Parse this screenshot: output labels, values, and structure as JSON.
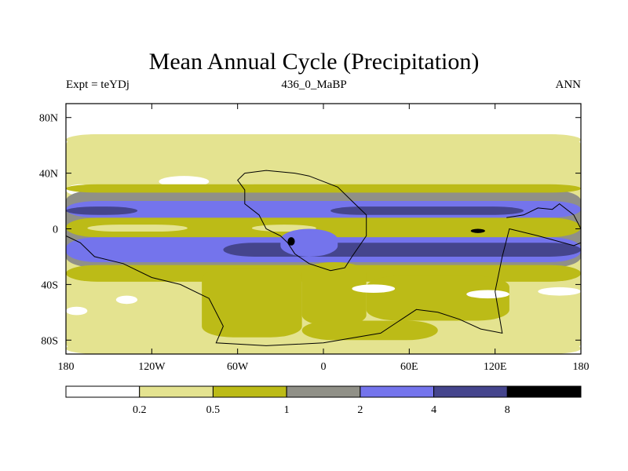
{
  "chart_data": {
    "type": "heatmap",
    "title": "Mean Annual Cycle (Precipitation)",
    "subtitle_left": "Expt = teYDj",
    "subtitle_center": "436_0_MaBP",
    "subtitle_right": "ANN",
    "x_range": [
      -180,
      180
    ],
    "y_range": [
      -90,
      90
    ],
    "x_ticks": [
      {
        "value": -180,
        "label": "180"
      },
      {
        "value": -120,
        "label": "120W"
      },
      {
        "value": -60,
        "label": "60W"
      },
      {
        "value": 0,
        "label": "0"
      },
      {
        "value": 60,
        "label": "60E"
      },
      {
        "value": 120,
        "label": "120E"
      },
      {
        "value": 180,
        "label": "180"
      }
    ],
    "y_ticks": [
      {
        "value": 80,
        "label": "80N"
      },
      {
        "value": 40,
        "label": "40N"
      },
      {
        "value": 0,
        "label": "0"
      },
      {
        "value": -40,
        "label": "40S"
      },
      {
        "value": -80,
        "label": "80S"
      }
    ],
    "colorbar": {
      "levels": [
        0.2,
        0.5,
        1,
        2,
        4,
        8
      ],
      "labels": [
        "0.2",
        "0.5",
        "1",
        "2",
        "4",
        "8"
      ],
      "colors": [
        "#ffffff",
        "#e4e390",
        "#bcbb17",
        "#909087",
        "#7474ec",
        "#45458d",
        "#000000"
      ]
    },
    "regions": [
      {
        "level": 1,
        "lon": [
          -180,
          180
        ],
        "lat": [
          -90,
          68
        ]
      },
      {
        "level": 0,
        "lon": [
          -180,
          180
        ],
        "lat": [
          68,
          90
        ]
      },
      {
        "level": 1,
        "lon": [
          -180,
          180
        ],
        "lat": [
          60,
          68
        ]
      },
      {
        "level": 1,
        "lon": [
          -180,
          180
        ],
        "lat": [
          44,
          54
        ]
      },
      {
        "level": 1,
        "lon": [
          -180,
          -30
        ],
        "lat": [
          28,
          36
        ]
      },
      {
        "level": 1,
        "lon": [
          40,
          140
        ],
        "lat": [
          24,
          36
        ]
      },
      {
        "level": 0,
        "lon": [
          -115,
          -80
        ],
        "lat": [
          30,
          38
        ]
      },
      {
        "level": 0,
        "lon": [
          -70,
          -35
        ],
        "lat": [
          22,
          32
        ]
      },
      {
        "level": 0,
        "lon": [
          -180,
          -160
        ],
        "lat": [
          24,
          32
        ]
      },
      {
        "level": 3,
        "lon": [
          -180,
          180
        ],
        "lat": [
          -28,
          28
        ]
      },
      {
        "level": 2,
        "lon": [
          -180,
          180
        ],
        "lat": [
          -38,
          -26
        ]
      },
      {
        "level": 2,
        "lon": [
          -180,
          180
        ],
        "lat": [
          26,
          32
        ]
      },
      {
        "level": 4,
        "lon": [
          -180,
          180
        ],
        "lat": [
          -24,
          -6
        ]
      },
      {
        "level": 4,
        "lon": [
          -180,
          180
        ],
        "lat": [
          8,
          20
        ]
      },
      {
        "level": 5,
        "lon": [
          -180,
          -130
        ],
        "lat": [
          10,
          16
        ]
      },
      {
        "level": 5,
        "lon": [
          -70,
          180
        ],
        "lat": [
          -20,
          -10
        ]
      },
      {
        "level": 5,
        "lon": [
          5,
          140
        ],
        "lat": [
          10,
          16
        ]
      },
      {
        "level": 2,
        "lon": [
          -180,
          180
        ],
        "lat": [
          -6,
          8
        ]
      },
      {
        "level": 1,
        "lon": [
          -165,
          -95
        ],
        "lat": [
          -2,
          3
        ]
      },
      {
        "level": 1,
        "lon": [
          -50,
          -5
        ],
        "lat": [
          -2,
          3
        ]
      },
      {
        "level": 4,
        "lon": [
          -30,
          10
        ],
        "lat": [
          -20,
          0
        ]
      },
      {
        "level": 2,
        "lon": [
          -15,
          30
        ],
        "lat": [
          -70,
          -24
        ]
      },
      {
        "level": 2,
        "lon": [
          30,
          130
        ],
        "lat": [
          -66,
          -34
        ]
      },
      {
        "level": 2,
        "lon": [
          -85,
          -15
        ],
        "lat": [
          -78,
          -28
        ]
      },
      {
        "level": 2,
        "lon": [
          -15,
          80
        ],
        "lat": [
          -80,
          -66
        ]
      },
      {
        "level": 1,
        "lon": [
          -180,
          180
        ],
        "lat": [
          -90,
          -82
        ]
      },
      {
        "level": 0,
        "lon": [
          -180,
          -165
        ],
        "lat": [
          -62,
          -56
        ]
      },
      {
        "level": 0,
        "lon": [
          -145,
          -130
        ],
        "lat": [
          -54,
          -48
        ]
      },
      {
        "level": 0,
        "lon": [
          20,
          50
        ],
        "lat": [
          -46,
          -40
        ]
      },
      {
        "level": 0,
        "lon": [
          100,
          130
        ],
        "lat": [
          -50,
          -44
        ]
      },
      {
        "level": 0,
        "lon": [
          150,
          180
        ],
        "lat": [
          -48,
          -42
        ]
      },
      {
        "level": 6,
        "lon": [
          -25,
          -20
        ],
        "lat": [
          -12,
          -6
        ]
      },
      {
        "level": 6,
        "lon": [
          103,
          113
        ],
        "lat": [
          -3,
          0
        ]
      }
    ],
    "continents": [
      [
        [
          -55,
          40
        ],
        [
          -40,
          42
        ],
        [
          -20,
          40
        ],
        [
          -10,
          38
        ],
        [
          10,
          30
        ],
        [
          20,
          20
        ],
        [
          30,
          10
        ],
        [
          30,
          -5
        ],
        [
          20,
          -20
        ],
        [
          15,
          -28
        ],
        [
          5,
          -30
        ],
        [
          -10,
          -25
        ],
        [
          -20,
          -18
        ],
        [
          -25,
          -10
        ],
        [
          -30,
          -5
        ],
        [
          -40,
          0
        ],
        [
          -45,
          10
        ],
        [
          -55,
          18
        ],
        [
          -55,
          28
        ],
        [
          -60,
          35
        ],
        [
          -55,
          40
        ]
      ],
      [
        [
          -180,
          -5
        ],
        [
          -170,
          -10
        ],
        [
          -160,
          -20
        ],
        [
          -140,
          -25
        ],
        [
          -120,
          -35
        ],
        [
          -100,
          -40
        ],
        [
          -80,
          -50
        ],
        [
          -70,
          -70
        ],
        [
          -75,
          -82
        ],
        [
          -40,
          -84
        ],
        [
          0,
          -82
        ],
        [
          40,
          -75
        ],
        [
          65,
          -58
        ],
        [
          80,
          -60
        ],
        [
          95,
          -65
        ],
        [
          110,
          -72
        ],
        [
          125,
          -75
        ],
        [
          120,
          -45
        ],
        [
          125,
          -20
        ],
        [
          130,
          0
        ],
        [
          150,
          -5
        ],
        [
          175,
          -12
        ],
        [
          180,
          -10
        ]
      ],
      [
        [
          128,
          8
        ],
        [
          140,
          10
        ],
        [
          150,
          15
        ],
        [
          160,
          14
        ],
        [
          165,
          18
        ],
        [
          175,
          10
        ],
        [
          180,
          0
        ]
      ]
    ]
  }
}
